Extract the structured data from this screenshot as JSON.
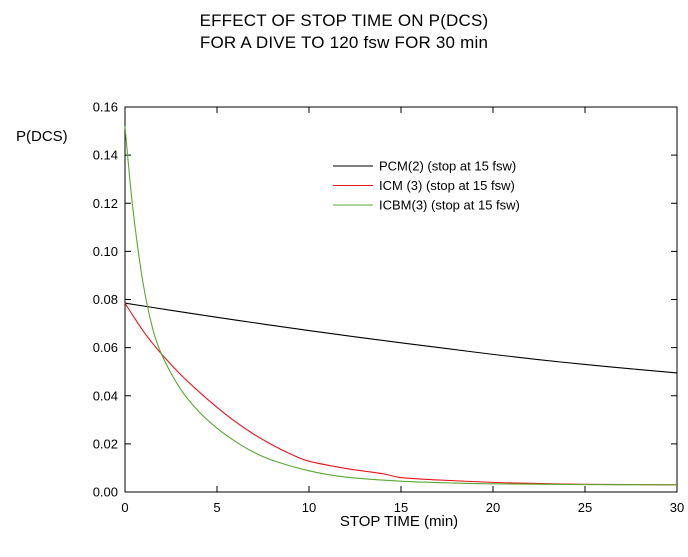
{
  "chart_data": {
    "type": "line",
    "title": [
      "EFFECT OF STOP TIME ON P(DCS)",
      "FOR A DIVE TO 120 fsw FOR 30 min"
    ],
    "xlabel": "STOP TIME (min)",
    "ylabel": "P(DCS)",
    "xlim": [
      0,
      30
    ],
    "ylim": [
      0,
      0.16
    ],
    "xticks": [
      0,
      5,
      10,
      15,
      20,
      25,
      30
    ],
    "xtick_labels": [
      "0",
      "5",
      "10",
      "15",
      "20",
      "25",
      "30"
    ],
    "yticks": [
      0,
      0.02,
      0.04,
      0.06,
      0.08,
      0.1,
      0.12,
      0.14,
      0.16
    ],
    "ytick_labels": [
      "0.00",
      "0.02",
      "0.04",
      "0.06",
      "0.08",
      "0.10",
      "0.12",
      "0.14",
      "0.16"
    ],
    "grid": false,
    "legend_position": "upper-right",
    "series": [
      {
        "name": "PCM(2) (stop at 15 fsw)",
        "color": "#000000",
        "x": [
          0,
          2.5,
          5,
          7.5,
          10,
          12.5,
          15,
          17.5,
          20,
          22.5,
          25,
          27.5,
          30
        ],
        "y": [
          0.0785,
          0.0755,
          0.0726,
          0.0698,
          0.0671,
          0.0645,
          0.062,
          0.0596,
          0.0572,
          0.055,
          0.053,
          0.0512,
          0.0495
        ]
      },
      {
        "name": "ICM (3) (stop at 15 fsw)",
        "color": "#e8141b",
        "x": [
          0,
          0.5,
          1,
          1.5,
          2,
          3,
          4,
          5,
          6,
          7,
          8,
          9,
          10,
          12,
          14,
          15,
          17,
          20,
          22,
          25,
          27,
          30
        ],
        "y": [
          0.0785,
          0.0725,
          0.0668,
          0.0618,
          0.0572,
          0.049,
          0.0418,
          0.0352,
          0.0292,
          0.024,
          0.0196,
          0.0158,
          0.0128,
          0.0098,
          0.0076,
          0.006,
          0.005,
          0.004,
          0.0036,
          0.0032,
          0.0031,
          0.003
        ]
      },
      {
        "name": "ICBM(3) (stop  at 15 fsw)",
        "color": "#58a832",
        "x": [
          0,
          0.3,
          0.6,
          1,
          1.5,
          2,
          3,
          4,
          5,
          6,
          7,
          8,
          10,
          12,
          15,
          18,
          20,
          25,
          30
        ],
        "y": [
          0.152,
          0.127,
          0.107,
          0.086,
          0.068,
          0.057,
          0.043,
          0.0335,
          0.0265,
          0.021,
          0.0165,
          0.0132,
          0.0088,
          0.0062,
          0.0045,
          0.0037,
          0.0034,
          0.0031,
          0.003
        ]
      }
    ]
  }
}
